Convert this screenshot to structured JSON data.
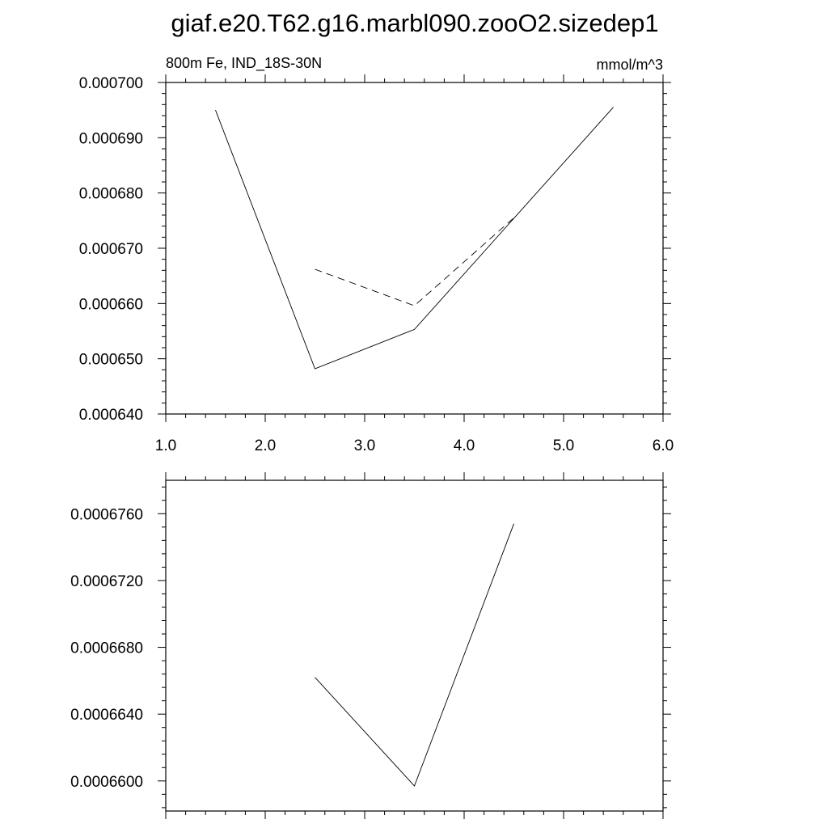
{
  "title": "giaf.e20.T62.g16.marbl090.zooO2.sizedep1",
  "chart_data": [
    {
      "type": "line",
      "subtitle_left": "800m Fe, IND_18S-30N",
      "subtitle_right": "mmol/m^3",
      "xlim": [
        1.0,
        6.0
      ],
      "xticks": [
        1.0,
        2.0,
        3.0,
        4.0,
        5.0,
        6.0
      ],
      "xtick_labels": [
        "1.0",
        "2.0",
        "3.0",
        "4.0",
        "5.0",
        "6.0"
      ],
      "ylim": [
        0.00064,
        0.0007
      ],
      "yticks": [
        0.00064,
        0.00065,
        0.00066,
        0.00067,
        0.00068,
        0.00069,
        0.0007
      ],
      "ytick_labels": [
        "0.000640",
        "0.000650",
        "0.000660",
        "0.000670",
        "0.000680",
        "0.000690",
        "0.000700"
      ],
      "series": [
        {
          "dash": "solid",
          "x": [
            1.5,
            2.5,
            3.5,
            5.5
          ],
          "values": [
            0.000695,
            0.0006482,
            0.0006553,
            0.0006955
          ]
        },
        {
          "dash": "dashed",
          "x": [
            2.5,
            3.5,
            4.5
          ],
          "values": [
            0.0006662,
            0.0006596,
            0.0006755
          ]
        }
      ]
    },
    {
      "type": "line",
      "xlim": [
        1.0,
        6.0
      ],
      "xticks": [
        1.0,
        2.0,
        3.0,
        4.0,
        5.0,
        6.0
      ],
      "ylim": [
        0.0006582,
        0.000678
      ],
      "yticks": [
        0.00066,
        0.000664,
        0.000668,
        0.000672,
        0.000676
      ],
      "ytick_labels": [
        "0.0006600",
        "0.0006640",
        "0.0006680",
        "0.0006720",
        "0.0006760"
      ],
      "series": [
        {
          "dash": "solid",
          "x": [
            2.5,
            3.5,
            4.5
          ],
          "values": [
            0.0006662,
            0.0006597,
            0.0006754
          ]
        }
      ]
    }
  ]
}
